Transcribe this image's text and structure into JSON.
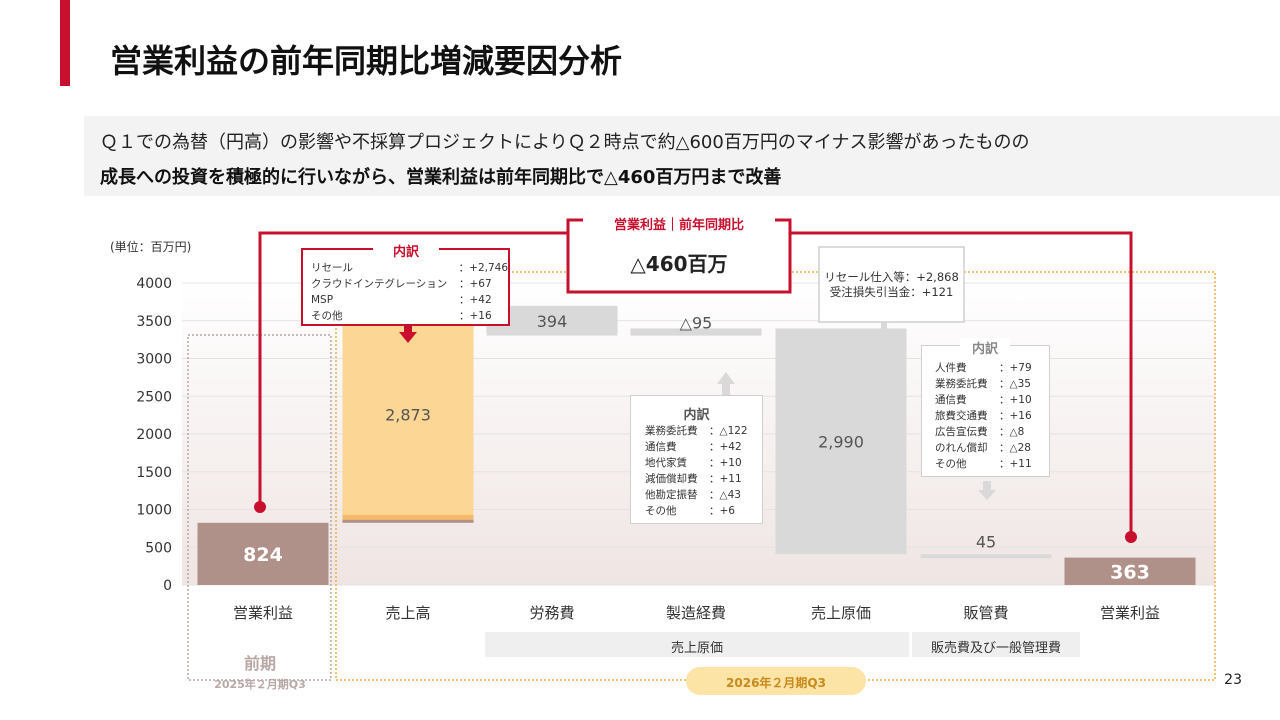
{
  "title": "営業利益の前年同期比増減要因分析",
  "summary": {
    "line1": "Ｑ１での為替（円高）の影響や不採算プロジェクトによりＱ２時点で約△600百万円のマイナス影響があったものの",
    "line2": "成長への投資を積極的に行いながら、営業利益は前年同期比で△460百万円まで改善"
  },
  "unit_label": "(単位：百万円)",
  "callout": {
    "label": "営業利益｜前年同期比",
    "value": "△460百万"
  },
  "chart_data": {
    "type": "bar",
    "subtype": "waterfall",
    "categories": [
      "営業利益",
      "売上高",
      "労務費",
      "製造経費",
      "売上原価",
      "販管費",
      "営業利益"
    ],
    "ylim": [
      0,
      4000
    ],
    "yticks": [
      0,
      500,
      1000,
      1500,
      2000,
      2500,
      3000,
      3500,
      4000
    ],
    "grid": true,
    "bars": [
      {
        "label": "824",
        "kind": "total",
        "start": 0,
        "end": 824
      },
      {
        "label": "2,873",
        "kind": "increase",
        "start": 824,
        "end": 3697
      },
      {
        "label": "394",
        "kind": "decrease",
        "start": 3697,
        "end": 3303
      },
      {
        "label": "△95",
        "kind": "increase",
        "start": 3303,
        "end": 3398
      },
      {
        "label": "2,990",
        "kind": "decrease",
        "start": 3398,
        "end": 408
      },
      {
        "label": "45",
        "kind": "decrease",
        "start": 408,
        "end": 363
      },
      {
        "label": "363",
        "kind": "total",
        "start": 0,
        "end": 363
      }
    ],
    "group_labels": {
      "cost_of_sales": "売上原価",
      "sga": "販売費及び一般管理費"
    },
    "period_prev": {
      "name": "前期",
      "sub": "2025年２月期Q3"
    },
    "period_curr": {
      "sub": "2026年２月期Q3"
    }
  },
  "breakdown_sales": {
    "header": "内訳",
    "rows": [
      {
        "label": "リセール",
        "value": "：+2,746"
      },
      {
        "label": "クラウドインテグレーション",
        "value": "：+67"
      },
      {
        "label": "MSP",
        "value": "：+42"
      },
      {
        "label": "その他",
        "value": "：+16"
      }
    ]
  },
  "breakdown_mfg": {
    "header": "内訳",
    "rows": [
      {
        "label": "業務委託費",
        "value": "：△122"
      },
      {
        "label": "通信費",
        "value": "：+42"
      },
      {
        "label": "地代家賃",
        "value": "：+10"
      },
      {
        "label": "減価償却費",
        "value": "：+11"
      },
      {
        "label": "他勘定振替",
        "value": "：△43"
      },
      {
        "label": "その他",
        "value": "：+6"
      }
    ]
  },
  "breakdown_cogs": {
    "line1": "リセール仕入等：+2,868",
    "line2": "受注損失引当金：+121"
  },
  "breakdown_sga": {
    "header": "内訳",
    "rows": [
      {
        "label": "人件費",
        "value": "：+79"
      },
      {
        "label": "業務委託費",
        "value": "：△35"
      },
      {
        "label": "通信費",
        "value": "：+10"
      },
      {
        "label": "旅費交通費",
        "value": "：+16"
      },
      {
        "label": "広告宣伝費",
        "value": "：△8"
      },
      {
        "label": "のれん償却",
        "value": "：△28"
      },
      {
        "label": "その他",
        "value": "：+11"
      }
    ]
  },
  "page_number": "23",
  "colors": {
    "accent": "#c8102e",
    "total_bar": "#b09189",
    "sales_bar": "#fbd694",
    "cost_bar": "#d9d9d9",
    "dotted_frame": "#f0b040",
    "prev_frame": "#b7a8a4"
  }
}
